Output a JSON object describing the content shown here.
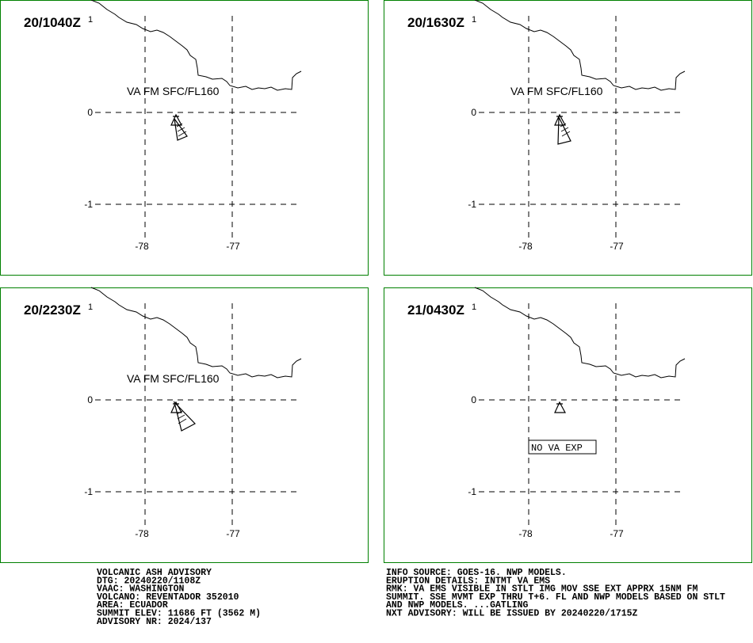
{
  "panels": [
    {
      "time": "20/1040Z",
      "marker": "1",
      "annotation": "VA FM SFC/FL160",
      "lat_labels": [
        "0",
        "-1"
      ],
      "lon_labels": [
        "-78",
        "-77"
      ]
    },
    {
      "time": "20/1630Z",
      "marker": "1",
      "annotation": "VA FM SFC/FL160",
      "lat_labels": [
        "0",
        "-1"
      ],
      "lon_labels": [
        "-78",
        "-77"
      ]
    },
    {
      "time": "20/2230Z",
      "marker": "1",
      "annotation": "VA FM SFC/FL160",
      "lat_labels": [
        "0",
        "-1"
      ],
      "lon_labels": [
        "-78",
        "-77"
      ]
    },
    {
      "time": "21/0430Z",
      "marker": "1",
      "annotation": "NO VA EXP",
      "lat_labels": [
        "0",
        "-1"
      ],
      "lon_labels": [
        "-78",
        "-77"
      ]
    }
  ],
  "advisory_left": [
    "VOLCANIC ASH ADVISORY",
    "DTG: 20240220/1108Z",
    "VAAC: WASHINGTON",
    "VOLCANO: REVENTADOR 352010",
    "AREA: ECUADOR",
    "SUMMIT ELEV: 11686 FT (3562 M)",
    "ADVISORY NR: 2024/137"
  ],
  "advisory_right": [
    "INFO SOURCE: GOES-16. NWP MODELS.",
    "ERUPTION DETAILS: INTMT VA EMS",
    "RMK: VA EMS VISIBLE IN STLT IMG MOV SSE EXT APPRX 15NM FM",
    "SUMMIT. SSE MVMT EXP THRU T+6. FL AND NWP MODELS BASED ON STLT",
    "AND NWP MODELS. ...GATLING",
    "NXT ADVISORY: WILL BE ISSUED BY 20240220/1715Z"
  ]
}
